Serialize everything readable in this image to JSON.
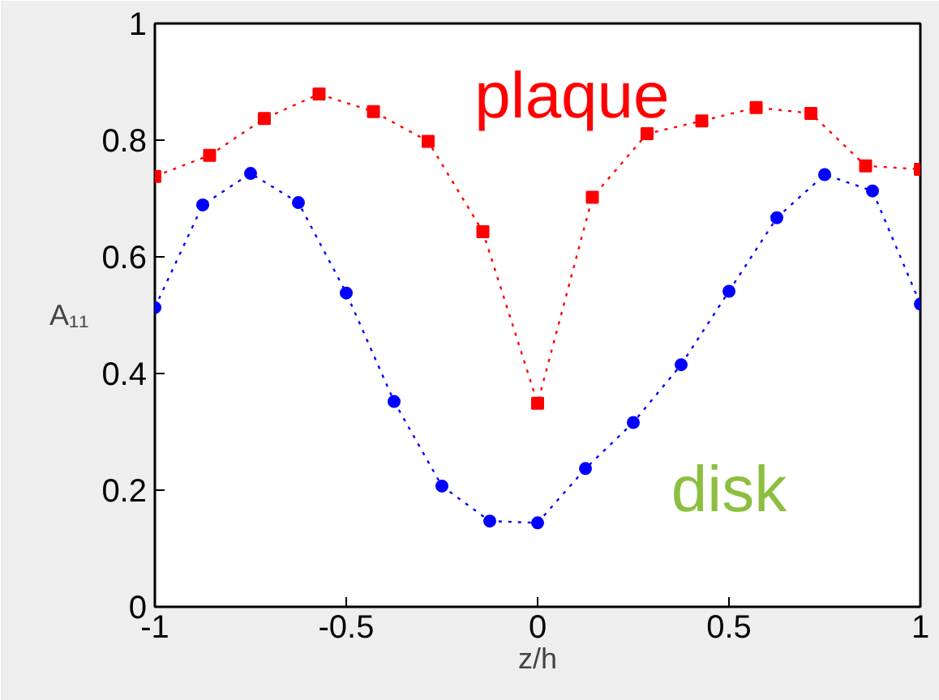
{
  "chart_data": {
    "type": "line",
    "xlabel": "z/h",
    "ylabel": "A₁₁",
    "xlim": [
      -1,
      1
    ],
    "ylim": [
      0,
      1
    ],
    "xticks": [
      -1,
      -0.5,
      0,
      0.5,
      1
    ],
    "yticks": [
      0,
      0.2,
      0.4,
      0.6,
      0.8,
      1
    ],
    "grid": false,
    "line_style": "dotted",
    "series": [
      {
        "color": "#ff0000",
        "marker": "square",
        "x": [
          -1,
          -0.857,
          -0.714,
          -0.571,
          -0.429,
          -0.286,
          -0.143,
          0,
          0.143,
          0.286,
          0.429,
          0.571,
          0.714,
          0.857,
          1
        ],
        "values": [
          0.738,
          0.774,
          0.837,
          0.879,
          0.849,
          0.798,
          0.643,
          0.349,
          0.702,
          0.811,
          0.833,
          0.856,
          0.846,
          0.756,
          0.75
        ]
      },
      {
        "color": "#0000ff",
        "marker": "circle",
        "x": [
          -1,
          -0.875,
          -0.75,
          -0.625,
          -0.5,
          -0.375,
          -0.25,
          -0.125,
          0,
          0.125,
          0.25,
          0.375,
          0.5,
          0.625,
          0.75,
          0.875,
          1
        ],
        "values": [
          0.513,
          0.689,
          0.743,
          0.693,
          0.538,
          0.352,
          0.207,
          0.147,
          0.144,
          0.237,
          0.316,
          0.415,
          0.541,
          0.667,
          0.741,
          0.713,
          0.519
        ]
      }
    ],
    "annotations": [
      "plaque",
      "disk"
    ]
  }
}
